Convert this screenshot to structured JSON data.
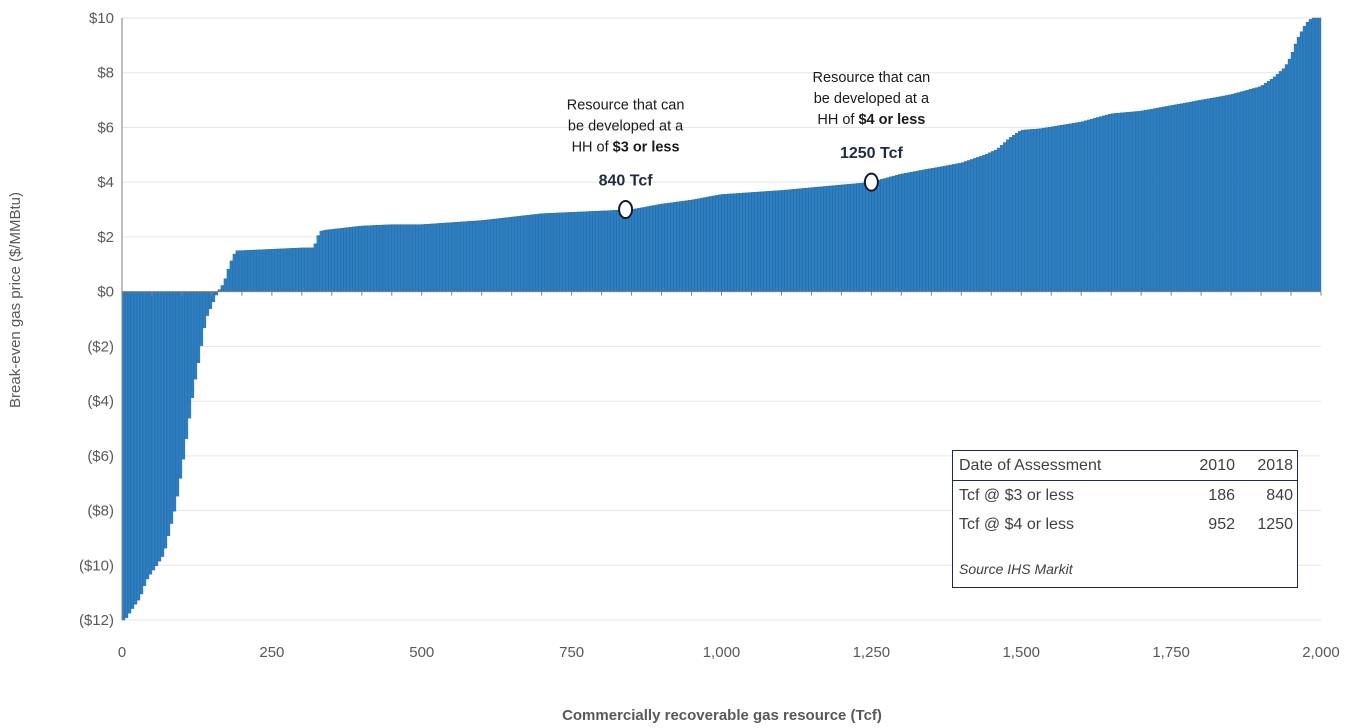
{
  "chart_data": {
    "type": "bar",
    "xlabel": "Commercially recoverable gas resource (Tcf)",
    "ylabel": "Break-even gas price ($/MMBtu)",
    "xlim": [
      0,
      2000
    ],
    "ylim": [
      -12,
      10
    ],
    "x_ticks": [
      "0",
      "250",
      "500",
      "750",
      "1,000",
      "1,250",
      "1,500",
      "1,750",
      "2,000"
    ],
    "y_ticks": [
      "$10",
      "$8",
      "$6",
      "$4",
      "$2",
      "$0",
      "($2)",
      "($4)",
      "($6)",
      "($8)",
      "($10)",
      "($12)"
    ],
    "grid": "horizontal",
    "bar_color": "#2e7fc1",
    "curve": {
      "x": [
        0,
        5,
        20,
        30,
        40,
        45,
        55,
        70,
        80,
        90,
        100,
        110,
        120,
        130,
        140,
        150,
        160,
        170,
        180,
        190,
        200,
        250,
        300,
        320,
        330,
        340,
        400,
        450,
        500,
        600,
        700,
        800,
        850,
        900,
        950,
        1000,
        1100,
        1200,
        1250,
        1300,
        1350,
        1400,
        1440,
        1460,
        1480,
        1500,
        1530,
        1600,
        1650,
        1700,
        1750,
        1800,
        1850,
        1900,
        1920,
        1940,
        1950,
        1960,
        1975,
        1985,
        2000
      ],
      "y": [
        -12,
        -12,
        -11.5,
        -11.2,
        -10.6,
        -10.4,
        -10.1,
        -9.6,
        -8.7,
        -7.8,
        -6.5,
        -5.0,
        -3.5,
        -2.3,
        -1.0,
        -0.5,
        0.0,
        0.3,
        1.0,
        1.5,
        1.5,
        1.55,
        1.6,
        1.6,
        2.2,
        2.25,
        2.4,
        2.45,
        2.45,
        2.6,
        2.85,
        2.95,
        3.0,
        3.2,
        3.35,
        3.55,
        3.7,
        3.9,
        4.0,
        4.3,
        4.5,
        4.7,
        5.0,
        5.2,
        5.6,
        5.9,
        5.95,
        6.2,
        6.5,
        6.6,
        6.8,
        7.0,
        7.2,
        7.5,
        7.8,
        8.2,
        8.6,
        9.2,
        9.8,
        10.0,
        10.0
      ]
    },
    "annotations": [
      {
        "id": "three-dollar",
        "x": 840,
        "y": 3,
        "label_lines": [
          [
            {
              "t": "Resource that can",
              "b": false
            }
          ],
          [
            {
              "t": "be developed at a",
              "b": false
            }
          ],
          [
            {
              "t": "HH of ",
              "b": false
            },
            {
              "t": "$3 or less",
              "b": true
            }
          ]
        ],
        "value_label": "840 Tcf"
      },
      {
        "id": "four-dollar",
        "x": 1250,
        "y": 4,
        "label_lines": [
          [
            {
              "t": "Resource that can",
              "b": false
            }
          ],
          [
            {
              "t": "be developed at a",
              "b": false
            }
          ],
          [
            {
              "t": "HH of ",
              "b": false
            },
            {
              "t": "$4 or less",
              "b": true
            }
          ]
        ],
        "value_label": "1250 Tcf"
      }
    ]
  },
  "table": {
    "header": {
      "label": "Date of Assessment",
      "col1": "2010",
      "col2": "2018"
    },
    "rows": [
      {
        "label": "Tcf @ $3 or less",
        "col1": "186",
        "col2": "840"
      },
      {
        "label": "Tcf @ $4 or less",
        "col1": "952",
        "col2": "1250"
      }
    ],
    "source": "Source IHS Markit"
  }
}
